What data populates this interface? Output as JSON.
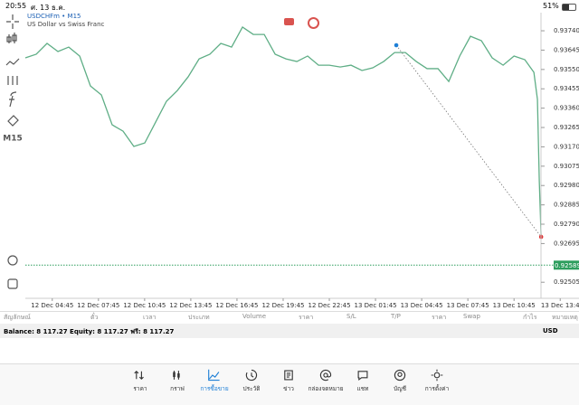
{
  "status_bar": {
    "time": "20:55",
    "date": "ศ. 13 ธ.ค.",
    "battery": "51%"
  },
  "toolbar": {
    "timeframe": "M15"
  },
  "chart_data": {
    "type": "line",
    "title": "USDCHFm • M15",
    "subtitle": "US Dollar vs Swiss Franc",
    "x": [
      3.0,
      3.71,
      4.41,
      5.12,
      5.82,
      6.53,
      7.23,
      7.94,
      8.64,
      9.35,
      10.05,
      10.76,
      11.47,
      12.17,
      12.88,
      13.58,
      14.29,
      14.99,
      15.7,
      16.4,
      17.11,
      17.81,
      18.52,
      19.23,
      19.93,
      20.64,
      21.34,
      22.05,
      22.75,
      23.46,
      24.16,
      24.87,
      25.57,
      26.28,
      26.99,
      27.69,
      28.4,
      29.1,
      29.81,
      30.51,
      31.22,
      31.92,
      32.63,
      33.33,
      34.04,
      34.75,
      35.45,
      36.04,
      36.27,
      36.39,
      36.51
    ],
    "series": [
      {
        "color": "#5fae86",
        "values": [
          0.93607,
          0.93625,
          0.93678,
          0.93638,
          0.9366,
          0.93616,
          0.93469,
          0.93425,
          0.93278,
          0.93247,
          0.93172,
          0.93189,
          0.93292,
          0.93394,
          0.93447,
          0.93514,
          0.93602,
          0.93625,
          0.93678,
          0.9366,
          0.93758,
          0.93722,
          0.93722,
          0.93625,
          0.93602,
          0.93589,
          0.93616,
          0.93571,
          0.93571,
          0.93562,
          0.93571,
          0.93545,
          0.93558,
          0.93589,
          0.93633,
          0.93633,
          0.93589,
          0.93554,
          0.93554,
          0.93491,
          0.93616,
          0.93713,
          0.93691,
          0.93607,
          0.93571,
          0.93616,
          0.93598,
          0.93536,
          0.93403,
          0.93003,
          0.92728
        ]
      }
    ],
    "xlim": [
      3,
      38.5
    ],
    "ylim": [
      0.92426,
      0.93829
    ],
    "xticks": [
      {
        "value": 4.75,
        "label": "12 Dec 04:45"
      },
      {
        "value": 7.75,
        "label": "12 Dec 07:45"
      },
      {
        "value": 10.75,
        "label": "12 Dec 10:45"
      },
      {
        "value": 13.75,
        "label": "12 Dec 13:45"
      },
      {
        "value": 16.75,
        "label": "12 Dec 16:45"
      },
      {
        "value": 19.75,
        "label": "12 Dec 19:45"
      },
      {
        "value": 22.75,
        "label": "12 Dec 22:45"
      },
      {
        "value": 25.75,
        "label": "13 Dec 01:45"
      },
      {
        "value": 28.75,
        "label": "13 Dec 04:45"
      },
      {
        "value": 31.75,
        "label": "13 Dec 07:45"
      },
      {
        "value": 34.75,
        "label": "13 Dec 10:45"
      },
      {
        "value": 37.75,
        "label": "13 Dec 13:4"
      }
    ],
    "yticks": [
      {
        "value": 0.9374,
        "label": "0.93740"
      },
      0.93645,
      {
        "value": 0.9355,
        "label": "0.93550"
      },
      0.93455,
      {
        "value": 0.9336,
        "label": "0.93360"
      },
      0.93265,
      {
        "value": 0.9317,
        "label": "0.93170"
      },
      0.93075,
      {
        "value": 0.9298,
        "label": "0.92980"
      },
      0.92885,
      {
        "value": 0.9279,
        "label": "0.92790"
      },
      0.92695,
      0.92505
    ],
    "current_price": 0.92589,
    "current_color": "#2e9e5e",
    "trade": {
      "open": {
        "x": 27.1,
        "y": 0.93669
      },
      "close": {
        "x": 36.51,
        "y": 0.92728
      }
    }
  },
  "table": {
    "columns": [
      "สัญลักษณ์",
      "ตั๋ว",
      "เวลา",
      "ประเภท",
      "Volume",
      "ราคา",
      "S/L",
      "T/P",
      "ราคา",
      "Swap",
      "กำไร",
      "หมายเหตุ"
    ]
  },
  "account": {
    "summary": "Balance: 8 117.27 Equity: 8 117.27 ฟรี: 8 117.27",
    "currency": "USD"
  },
  "nav": {
    "items": [
      "ราคา",
      "กราฟ",
      "การซื้อขาย",
      "ประวัติ",
      "ข่าว",
      "กล่องจดหมาย",
      "แชท",
      "บัญชี",
      "การตั้งค่า"
    ]
  }
}
